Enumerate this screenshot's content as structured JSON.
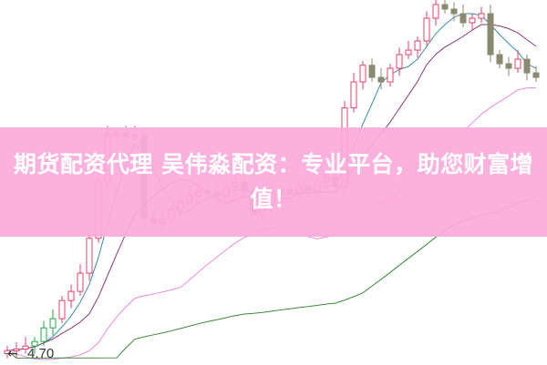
{
  "chart_data": {
    "type": "candlestick",
    "title": "",
    "xlabel": "",
    "ylabel": "",
    "ylim": [
      4.57,
      9.38
    ],
    "grid": false,
    "closes": [
      4.76,
      4.78,
      4.82,
      4.88,
      5.06,
      5.18,
      5.42,
      5.54,
      5.78,
      6.24,
      6.98,
      7.6,
      7.63,
      7.58,
      7.6,
      6.5,
      6.44,
      6.5,
      6.62,
      6.72,
      6.8,
      6.86,
      6.84,
      6.8,
      6.92,
      6.98,
      6.86,
      6.56,
      6.68,
      6.86,
      6.88,
      6.84,
      6.92,
      6.86,
      6.98,
      7.04,
      6.92,
      7.96,
      8.3,
      8.52,
      8.36,
      8.3,
      8.48,
      8.66,
      8.72,
      8.84,
      9.14,
      9.32,
      9.26,
      9.2,
      9.08,
      9.14,
      9.2,
      8.66,
      8.54,
      8.48,
      8.6,
      8.42,
      8.36
    ],
    "reference_line": 6.72,
    "annotations": [
      {
        "label": "4.70",
        "value": 4.7
      }
    ],
    "moving_averages": [
      {
        "period": 5,
        "color": "#3a8fa0"
      },
      {
        "period": 10,
        "color": "#8a3a7a"
      },
      {
        "period": 20,
        "color": "#e98be0"
      },
      {
        "period": 40,
        "color": "#3a8a3a"
      }
    ],
    "colors": {
      "up": "#e0436a",
      "down": "#8a8a70",
      "up_small": "#22aa44"
    }
  },
  "banner": {
    "text": "期货配资代理 吴伟淼配资：专业平台，助您财富增值！",
    "color": "#fcaada"
  },
  "low_marker": {
    "arrow": "←",
    "label": "4.70"
  }
}
